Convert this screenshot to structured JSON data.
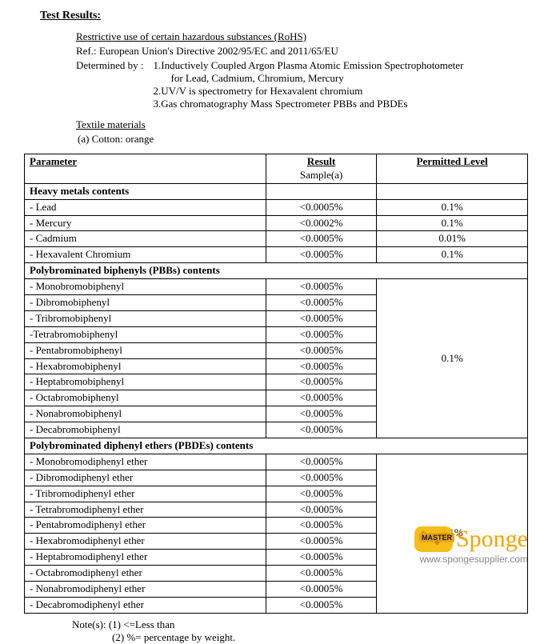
{
  "title": "Test Results:",
  "rohs_header": "Restrictive use of certain hazardous substances (RoHS)",
  "ref_line": "Ref.: European Union's Directive 2002/95/EC and 2011/65/EU",
  "determined_label": "Determined by :",
  "methods": {
    "m1": "1.Inductively Coupled Argon Plasma Atomic Emission Spectrophotometer",
    "m1b": "for Lead, Cadmium, Chromium, Mercury",
    "m2": "2.UV/V is spectrometry for Hexavalent chromium",
    "m3": "3.Gas chromatography Mass Spectrometer PBBs and PBDEs"
  },
  "textile_header": "Textile materials",
  "textile_item": "(a)   Cotton: orange",
  "table": {
    "headers": {
      "param": "Parameter",
      "result": "Result",
      "result_sub": "Sample(a)",
      "permit": "Permitted Level"
    },
    "heavy_metals": {
      "title": "Heavy metals contents",
      "rows": [
        {
          "name": " - Lead",
          "result": "<0.0005%",
          "permit": "0.1%"
        },
        {
          "name": " - Mercury",
          "result": "<0.0002%",
          "permit": "0.1%"
        },
        {
          "name": " - Cadmium",
          "result": "<0.0005%",
          "permit": "0.01%"
        },
        {
          "name": " - Hexavalent Chromium",
          "result": "<0.0005%",
          "permit": "0.1%"
        }
      ]
    },
    "pbbs": {
      "title": "Polybrominated biphenyls (PBBs) contents",
      "permit": "0.1%",
      "rows": [
        {
          "name": " - Monobromobiphenyl",
          "result": "<0.0005%"
        },
        {
          "name": " - Dibromobiphenyl",
          "result": "<0.0005%"
        },
        {
          "name": " - Tribromobiphenyl",
          "result": "<0.0005%"
        },
        {
          "name": " -Tetrabromobiphenyl",
          "result": "<0.0005%"
        },
        {
          "name": " - Pentabromobiphenyl",
          "result": "<0.0005%"
        },
        {
          "name": " - Hexabromobiphenyl",
          "result": "<0.0005%"
        },
        {
          "name": " - Heptabromobiphenyl",
          "result": "<0.0005%"
        },
        {
          "name": " - Octabromobiphenyl",
          "result": "<0.0005%"
        },
        {
          "name": " - Nonabromobiphenyl",
          "result": "<0.0005%"
        },
        {
          "name": " - Decabromobiphenyl",
          "result": "<0.0005%"
        }
      ]
    },
    "pbdes": {
      "title": "Polybrominated diphenyl ethers (PBDEs) contents",
      "permit": "0.1%",
      "rows": [
        {
          "name": " - Monobromodiphenyl ether",
          "result": "<0.0005%"
        },
        {
          "name": " - Dibromodiphenyl ether",
          "result": "<0.0005%"
        },
        {
          "name": " - Tribromodiphenyl ether",
          "result": "<0.0005%"
        },
        {
          "name": " - Tetrabromodiphenyl ether",
          "result": "<0.0005%"
        },
        {
          "name": " - Pentabromodiphenyl ether",
          "result": "<0.0005%"
        },
        {
          "name": " - Hexabromodiphenyl ether",
          "result": "<0.0005%"
        },
        {
          "name": " - Heptabromodiphenyl ether",
          "result": "<0.0005%"
        },
        {
          "name": " - Octabromodiphenyl ether",
          "result": "<0.0005%"
        },
        {
          "name": " - Nonabromodiphenyl ether",
          "result": "<0.0005%"
        },
        {
          "name": " - Decabromodiphenyl ether",
          "result": "<0.0005%"
        }
      ]
    }
  },
  "notes": {
    "n1": "Note(s): (1) <=Less than",
    "n2": "(2) %= percentage by weight."
  },
  "logo": {
    "master": "MASTER",
    "sponge": "Sponge",
    "url": "www.spongesupplier.com"
  },
  "colors": {
    "logo_yellow": "#f5a300",
    "url_gray": "#888888"
  }
}
